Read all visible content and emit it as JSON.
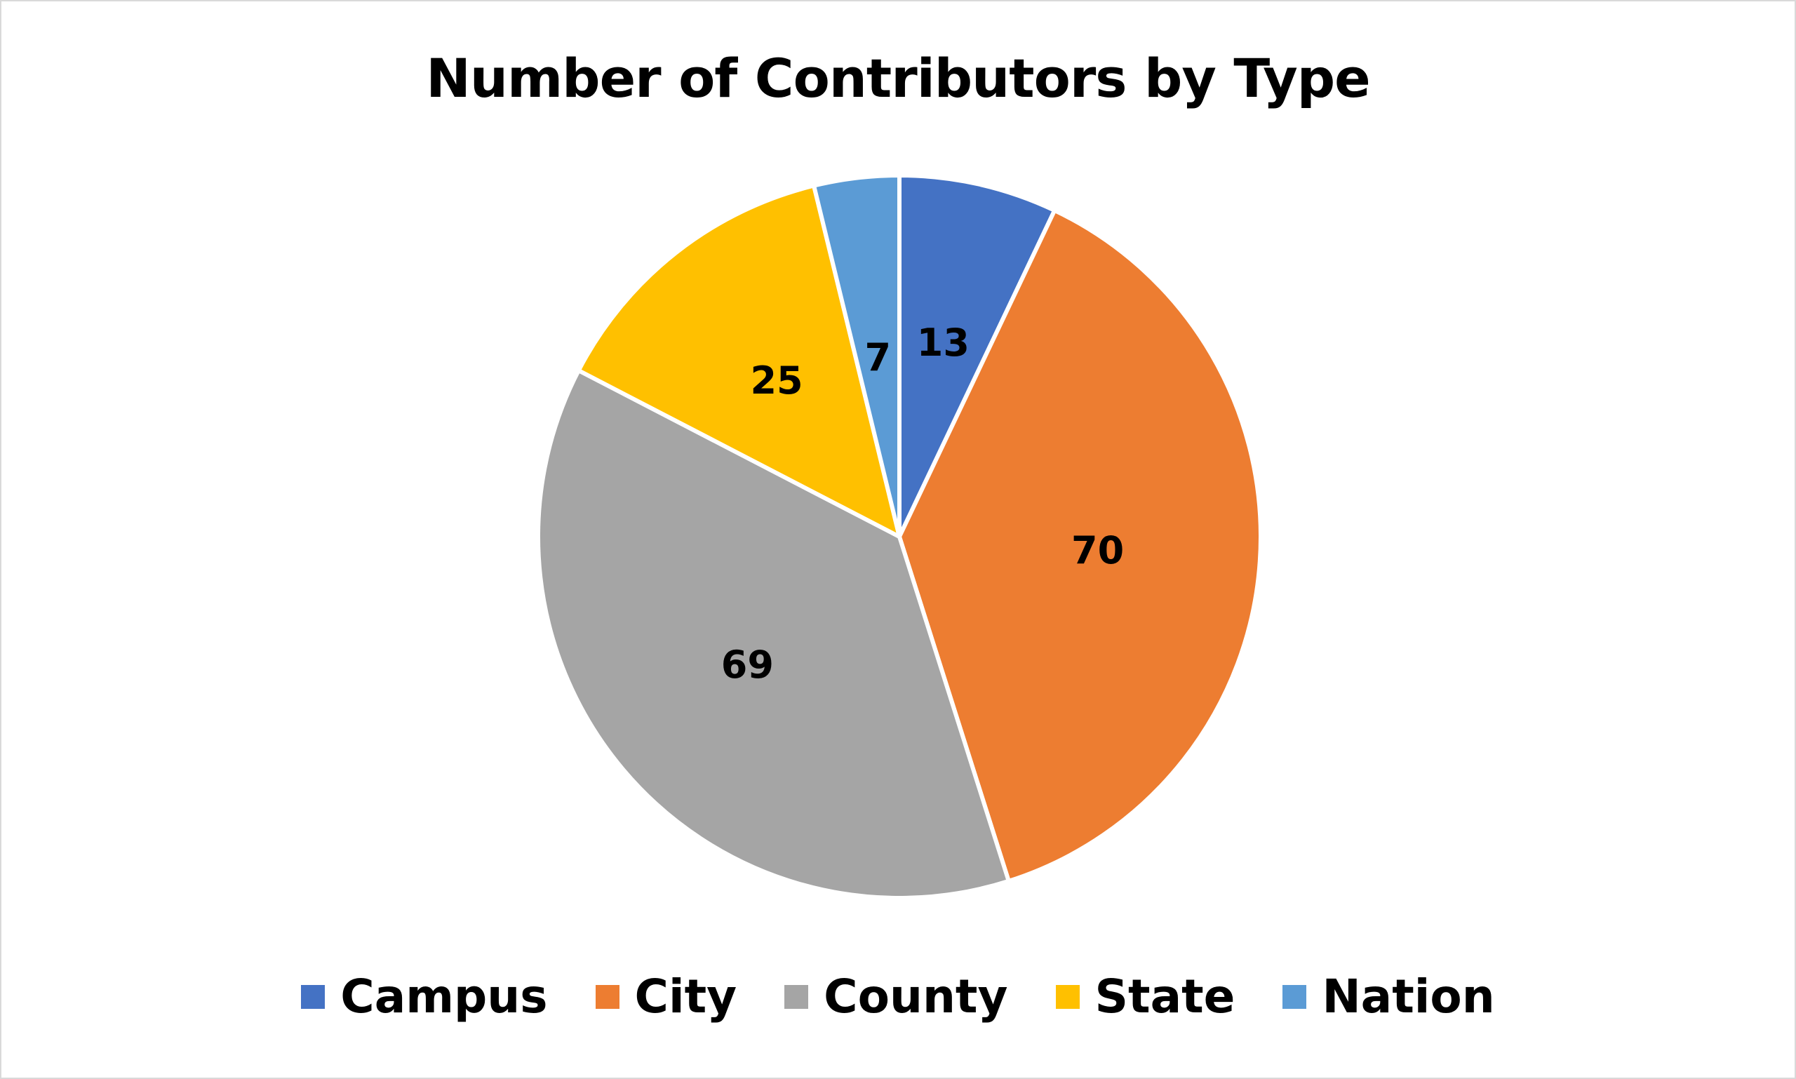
{
  "chart_data": {
    "type": "pie",
    "title": "Number of Contributors by Type",
    "categories": [
      "Campus",
      "City",
      "County",
      "State",
      "Nation"
    ],
    "values": [
      13,
      70,
      69,
      25,
      7
    ],
    "colors": [
      "#4472C4",
      "#ED7D31",
      "#A5A5A5",
      "#FFC000",
      "#5B9BD5"
    ],
    "data_labels": [
      "13",
      "70",
      "69",
      "25",
      "7"
    ],
    "legend_position": "bottom",
    "start_angle": "12 o'clock",
    "direction": "clockwise"
  }
}
